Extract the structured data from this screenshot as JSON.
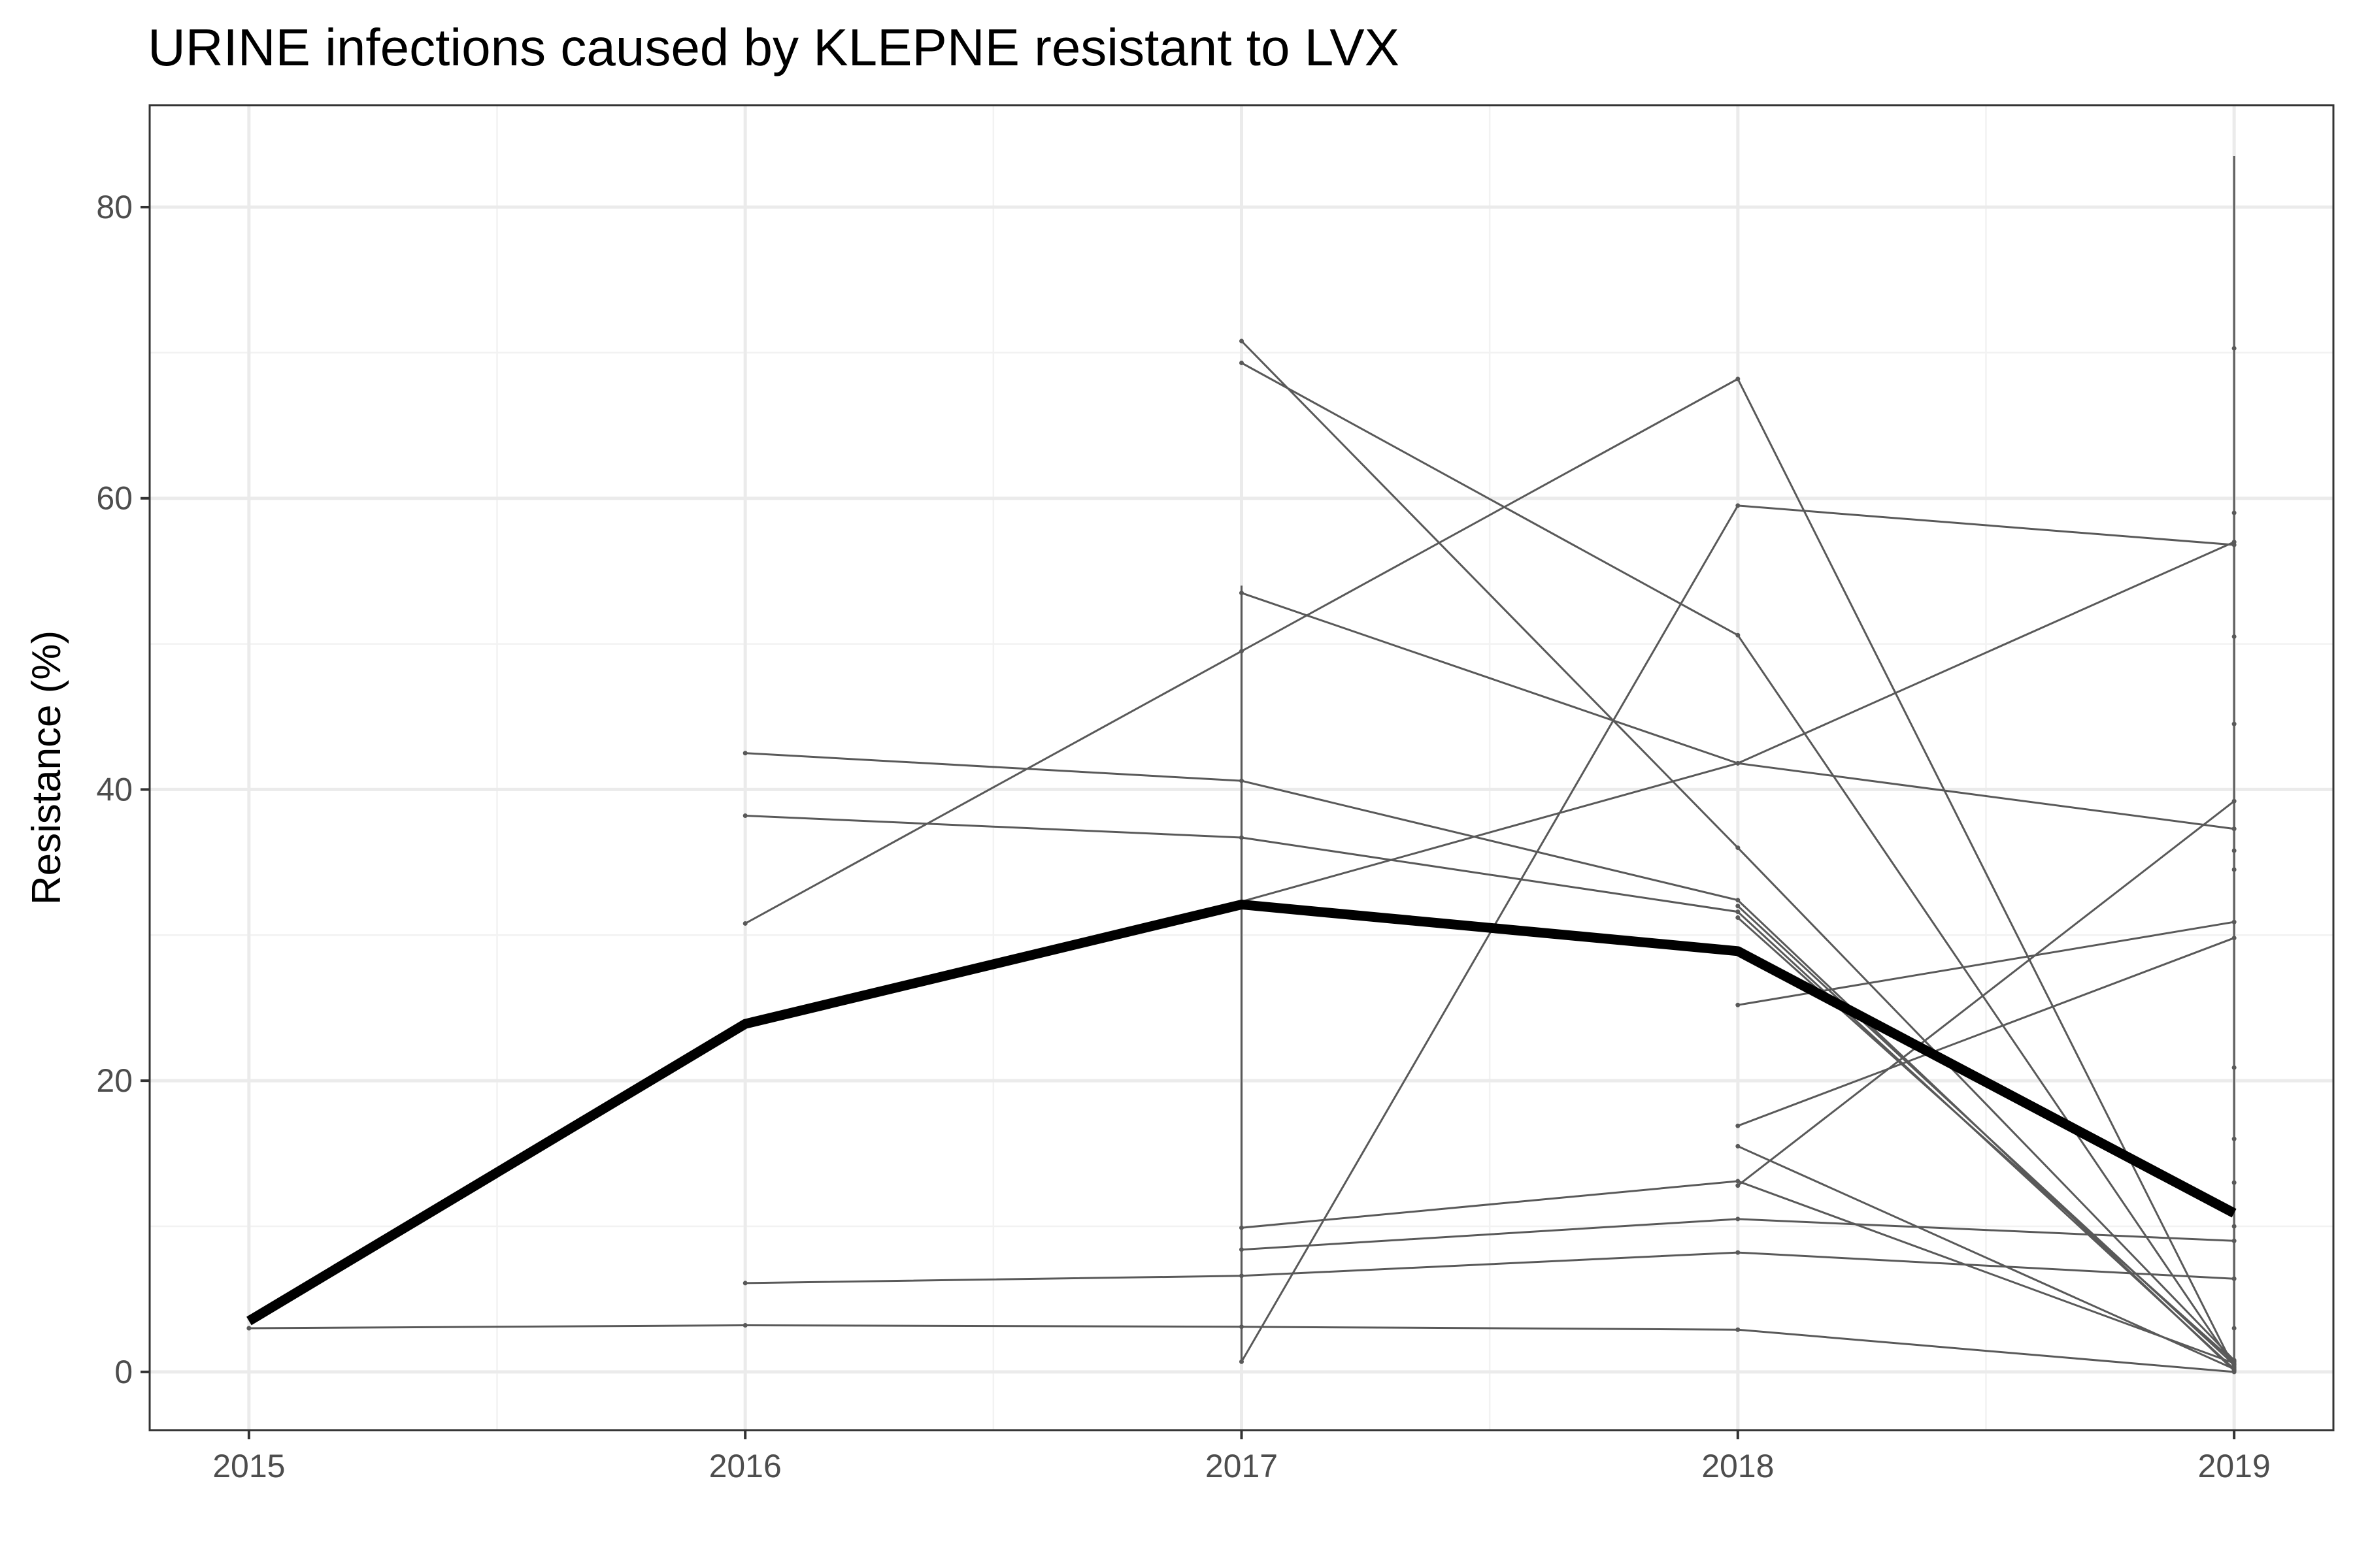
{
  "chart_data": {
    "type": "line",
    "title": "URINE infections caused by KLEPNE resistant to LVX",
    "xlabel": "",
    "ylabel": "Resistance (%)",
    "xlim": [
      2014.8,
      2019.2
    ],
    "ylim": [
      -4,
      87
    ],
    "x_ticks": [
      2015,
      2016,
      2017,
      2018,
      2019
    ],
    "x_tick_labels": [
      "2015",
      "2016",
      "2017",
      "2018",
      "2019"
    ],
    "y_ticks": [
      0,
      20,
      40,
      60,
      80
    ],
    "y_tick_labels": [
      "0",
      "20",
      "40",
      "60",
      "80"
    ],
    "grid": true,
    "legend": "none",
    "colors": {
      "series": "#595959",
      "mean": "#000000",
      "border": "#333333"
    },
    "mean_series": {
      "x": [
        2015,
        2016,
        2017,
        2018,
        2019
      ],
      "values": [
        3.5,
        23.9,
        32.1,
        28.9,
        10.9
      ]
    },
    "series": [
      {
        "x": [
          2015,
          2016,
          2017,
          2018,
          2019
        ],
        "values": [
          3.0,
          3.2,
          3.1,
          2.9,
          0.0
        ]
      },
      {
        "x": [
          2016,
          2017,
          2018,
          2019
        ],
        "values": [
          6.1,
          6.6,
          8.2,
          6.4
        ]
      },
      {
        "x": [
          2016,
          2017,
          2018,
          2019
        ],
        "values": [
          30.8,
          49.5,
          68.2,
          0.3
        ]
      },
      {
        "x": [
          2016,
          2017,
          2018,
          2019
        ],
        "values": [
          38.2,
          36.7,
          31.6,
          0.2
        ]
      },
      {
        "x": [
          2016,
          2017,
          2018,
          2019
        ],
        "values": [
          42.5,
          40.6,
          32.4,
          0.1
        ]
      },
      {
        "x": [
          2017,
          2018,
          2019
        ],
        "values": [
          70.8,
          36.0,
          0.8
        ]
      },
      {
        "x": [
          2017,
          2018,
          2019
        ],
        "values": [
          69.3,
          50.6,
          0.4
        ]
      },
      {
        "x": [
          2017,
          2018,
          2019
        ],
        "values": [
          53.5,
          41.8,
          37.3
        ]
      },
      {
        "x": [
          2017,
          2018,
          2019
        ],
        "values": [
          32.3,
          41.8,
          57.0
        ]
      },
      {
        "x": [
          2017,
          2018,
          2019
        ],
        "values": [
          0.7,
          59.5,
          56.8
        ]
      },
      {
        "x": [
          2017,
          2018,
          2019
        ],
        "values": [
          9.9,
          13.1,
          0.6
        ]
      },
      {
        "x": [
          2017,
          2018,
          2019
        ],
        "values": [
          8.4,
          10.5,
          9.0
        ]
      },
      {
        "x": [
          2018,
          2019
        ],
        "values": [
          25.2,
          30.9
        ]
      },
      {
        "x": [
          2018,
          2019
        ],
        "values": [
          16.9,
          29.8
        ]
      },
      {
        "x": [
          2018,
          2019
        ],
        "values": [
          12.8,
          39.2
        ]
      },
      {
        "x": [
          2018,
          2019
        ],
        "values": [
          15.5,
          0.2
        ]
      },
      {
        "x": [
          2018,
          2019
        ],
        "values": [
          32.0,
          0.5
        ]
      },
      {
        "x": [
          2018,
          2019
        ],
        "values": [
          31.2,
          0.7
        ]
      }
    ],
    "range_bars": [
      {
        "x": 2017,
        "values": [
          0.7,
          54.0
        ]
      },
      {
        "x": 2019,
        "values": [
          0.0,
          83.5
        ]
      }
    ],
    "extra_points": [
      {
        "x": 2019,
        "values": [
          70.3,
          59.0,
          50.5,
          44.5,
          35.8,
          34.5,
          20.9,
          16.0,
          13.0,
          10.0,
          3.0
        ]
      }
    ]
  }
}
